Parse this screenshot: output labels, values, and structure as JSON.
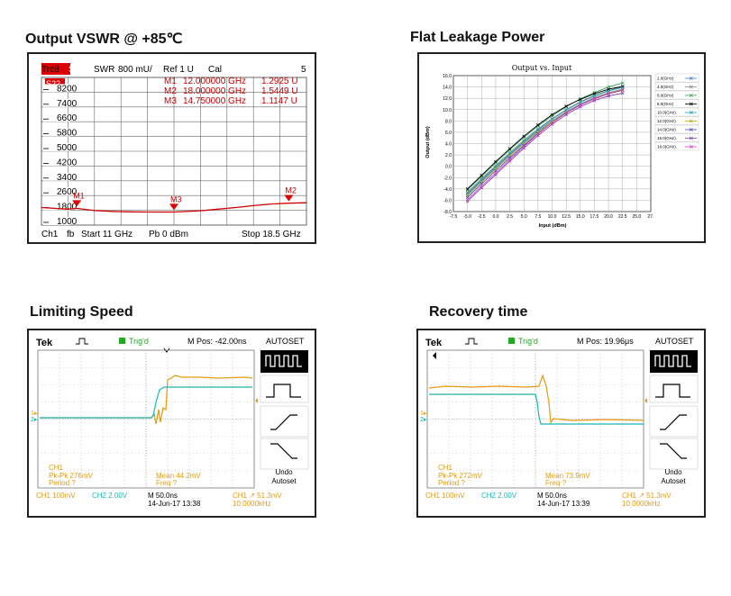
{
  "titles": {
    "vswr": "Output VSWR  @ +85℃",
    "leak": "Flat Leakage Power",
    "limit": "Limiting Speed",
    "recov": "Recovery time"
  },
  "vswr": {
    "trc": "Trc8",
    "param_badge": "S22",
    "fmt": "SWR",
    "scale": "800 mU/",
    "ref": "Ref 1 U",
    "cal": "Cal",
    "num": "5",
    "trace_badge": "S22",
    "yticks": [
      "8200",
      "7400",
      "6600",
      "5800",
      "5000",
      "4200",
      "3400",
      "2600",
      "1800",
      "1000"
    ],
    "markers": [
      {
        "id": "M1",
        "freq": "12.000000 GHz",
        "val": "1.2925 U"
      },
      {
        "id": "M2",
        "freq": "18.000000 GHz",
        "val": "1.5449 U"
      },
      {
        "id": "M3",
        "freq": "14.750000 GHz",
        "val": "1.1147 U"
      }
    ],
    "bottom": {
      "ch": "Ch1",
      "fb": "fb",
      "start": "Start  11 GHz",
      "pb": "Pb   0 dBm",
      "stop": "Stop  18.5 GHz"
    }
  },
  "leak": {
    "title": "Output vs. Input",
    "xlabel": "Input (dBm)",
    "ylabel": "Output (dBm)",
    "xticks": [
      "-7.5",
      "-5.0",
      "-2.5",
      "0.0",
      "2.5",
      "5.0",
      "7.5",
      "10.0",
      "12.5",
      "15.0",
      "17.5",
      "20.0",
      "22.5",
      "25.0",
      "27."
    ],
    "yticks": [
      "16.0",
      "14.0",
      "12.0",
      "10.0",
      "8.0",
      "6.0",
      "4.0",
      "2.0",
      "0.0",
      "-2.0",
      "-4.0",
      "-6.0",
      "-8.0"
    ],
    "legend": [
      "2.0(GHz)",
      "4.0(GHz)",
      "6.0(GHz)",
      "8.0(GHz)",
      "10.0(GHz)",
      "12.0(GHz)",
      "14.0(GHz)",
      "16.0(GHz)",
      "18.0(GHz)"
    ],
    "colors": [
      "#4a7fbf",
      "#888888",
      "#3aa35a",
      "#000000",
      "#1f9fbf",
      "#c8a800",
      "#3b4fd0",
      "#8b3fb0",
      "#d040c0"
    ]
  },
  "chart_data": [
    {
      "type": "line",
      "title": "",
      "xlabel": "",
      "ylabel": "",
      "x": [
        11.0,
        11.75,
        12.0,
        12.5,
        13.0,
        13.5,
        14.0,
        14.75,
        15.5,
        16.0,
        16.5,
        17.0,
        17.5,
        18.0,
        18.5
      ],
      "series": [
        {
          "name": "S22",
          "values": [
            1.33,
            1.25,
            1.29,
            1.18,
            1.14,
            1.12,
            1.11,
            1.11,
            1.17,
            1.25,
            1.33,
            1.42,
            1.5,
            1.54,
            1.56
          ]
        }
      ],
      "ylim": [
        1.0,
        8.2
      ]
    },
    {
      "type": "line",
      "title": "Output vs. Input",
      "xlabel": "Input (dBm)",
      "ylabel": "Output (dBm)",
      "xlim": [
        -7.5,
        27.5
      ],
      "ylim": [
        -8.0,
        16.0
      ],
      "x": [
        -5.0,
        -2.5,
        0.0,
        2.5,
        5.0,
        7.5,
        10.0,
        12.5,
        15.0,
        17.5,
        20.0,
        22.5
      ],
      "series": [
        {
          "name": "2.0(GHz)",
          "values": [
            -5.0,
            -2.6,
            -0.3,
            2.0,
            4.2,
            6.2,
            8.0,
            9.6,
            11.0,
            12.1,
            13.0,
            13.6
          ]
        },
        {
          "name": "4.0(GHz)",
          "values": [
            -4.6,
            -2.2,
            0.1,
            2.4,
            4.6,
            6.6,
            8.4,
            10.0,
            11.4,
            12.5,
            13.4,
            14.0
          ]
        },
        {
          "name": "6.0(GHz)",
          "values": [
            -4.2,
            -1.8,
            0.6,
            2.9,
            5.1,
            7.1,
            8.9,
            10.5,
            11.9,
            13.0,
            14.0,
            14.7
          ]
        },
        {
          "name": "8.0(GHz)",
          "values": [
            -4.0,
            -1.6,
            0.8,
            3.1,
            5.3,
            7.3,
            9.1,
            10.6,
            11.8,
            12.8,
            13.6,
            14.1
          ]
        },
        {
          "name": "10.0(GHz)",
          "values": [
            -4.8,
            -2.4,
            -0.1,
            2.2,
            4.4,
            6.4,
            8.3,
            9.9,
            11.3,
            12.4,
            13.3,
            13.9
          ]
        },
        {
          "name": "12.0(GHz)",
          "values": [
            -5.2,
            -2.8,
            -0.5,
            1.8,
            4.0,
            6.0,
            7.9,
            9.5,
            10.9,
            12.0,
            12.9,
            13.5
          ]
        },
        {
          "name": "14.0(GHz)",
          "values": [
            -5.5,
            -3.1,
            -0.8,
            1.5,
            3.7,
            5.8,
            7.7,
            9.4,
            10.8,
            11.9,
            12.8,
            13.4
          ]
        },
        {
          "name": "16.0(GHz)",
          "values": [
            -6.2,
            -3.8,
            -1.5,
            0.9,
            3.2,
            5.4,
            7.4,
            9.1,
            10.5,
            11.6,
            12.4,
            12.9
          ]
        },
        {
          "name": "18.0(GHz)",
          "values": [
            -5.9,
            -3.5,
            -1.2,
            1.2,
            3.5,
            5.7,
            7.7,
            9.4,
            10.8,
            11.9,
            12.8,
            13.4
          ]
        }
      ]
    }
  ],
  "limit": {
    "brand": "Tek",
    "trig": "Trig'd",
    "mpos": "M Pos: -42.00ns",
    "autoset": "AUTOSET",
    "undo1": "Undo",
    "undo2": "Autoset",
    "m_ch1": "CH1",
    "m_pk": "Pk-Pk 276mV",
    "m_period": "Period ?",
    "m_mean": "Mean 44.2mV",
    "m_freq": "Freq ?",
    "b_ch1": "CH1  100mV",
    "b_ch2": "CH2  2.00V",
    "b_m": "M 50.0ns",
    "b_date": "14-Jun-17 13:38",
    "b_trig": "CH1  ↗ 51.3mV",
    "b_freq": "10.0000kHz"
  },
  "recov": {
    "brand": "Tek",
    "trig": "Trig'd",
    "mpos": "M Pos: 19.96μs",
    "autoset": "AUTOSET",
    "undo1": "Undo",
    "undo2": "Autoset",
    "m_ch1": "CH1",
    "m_pk": "Pk-Pk 272mV",
    "m_period": "Period ?",
    "m_mean": "Mean 73.9mV",
    "m_freq": "Freq ?",
    "b_ch1": "CH1  100mV",
    "b_ch2": "CH2  2.00V",
    "b_m": "M 50.0ns",
    "b_date": "14-Jun-17 13:39",
    "b_trig": "CH1  ↗ 51.3mV",
    "b_freq": "10.0000kHz"
  }
}
